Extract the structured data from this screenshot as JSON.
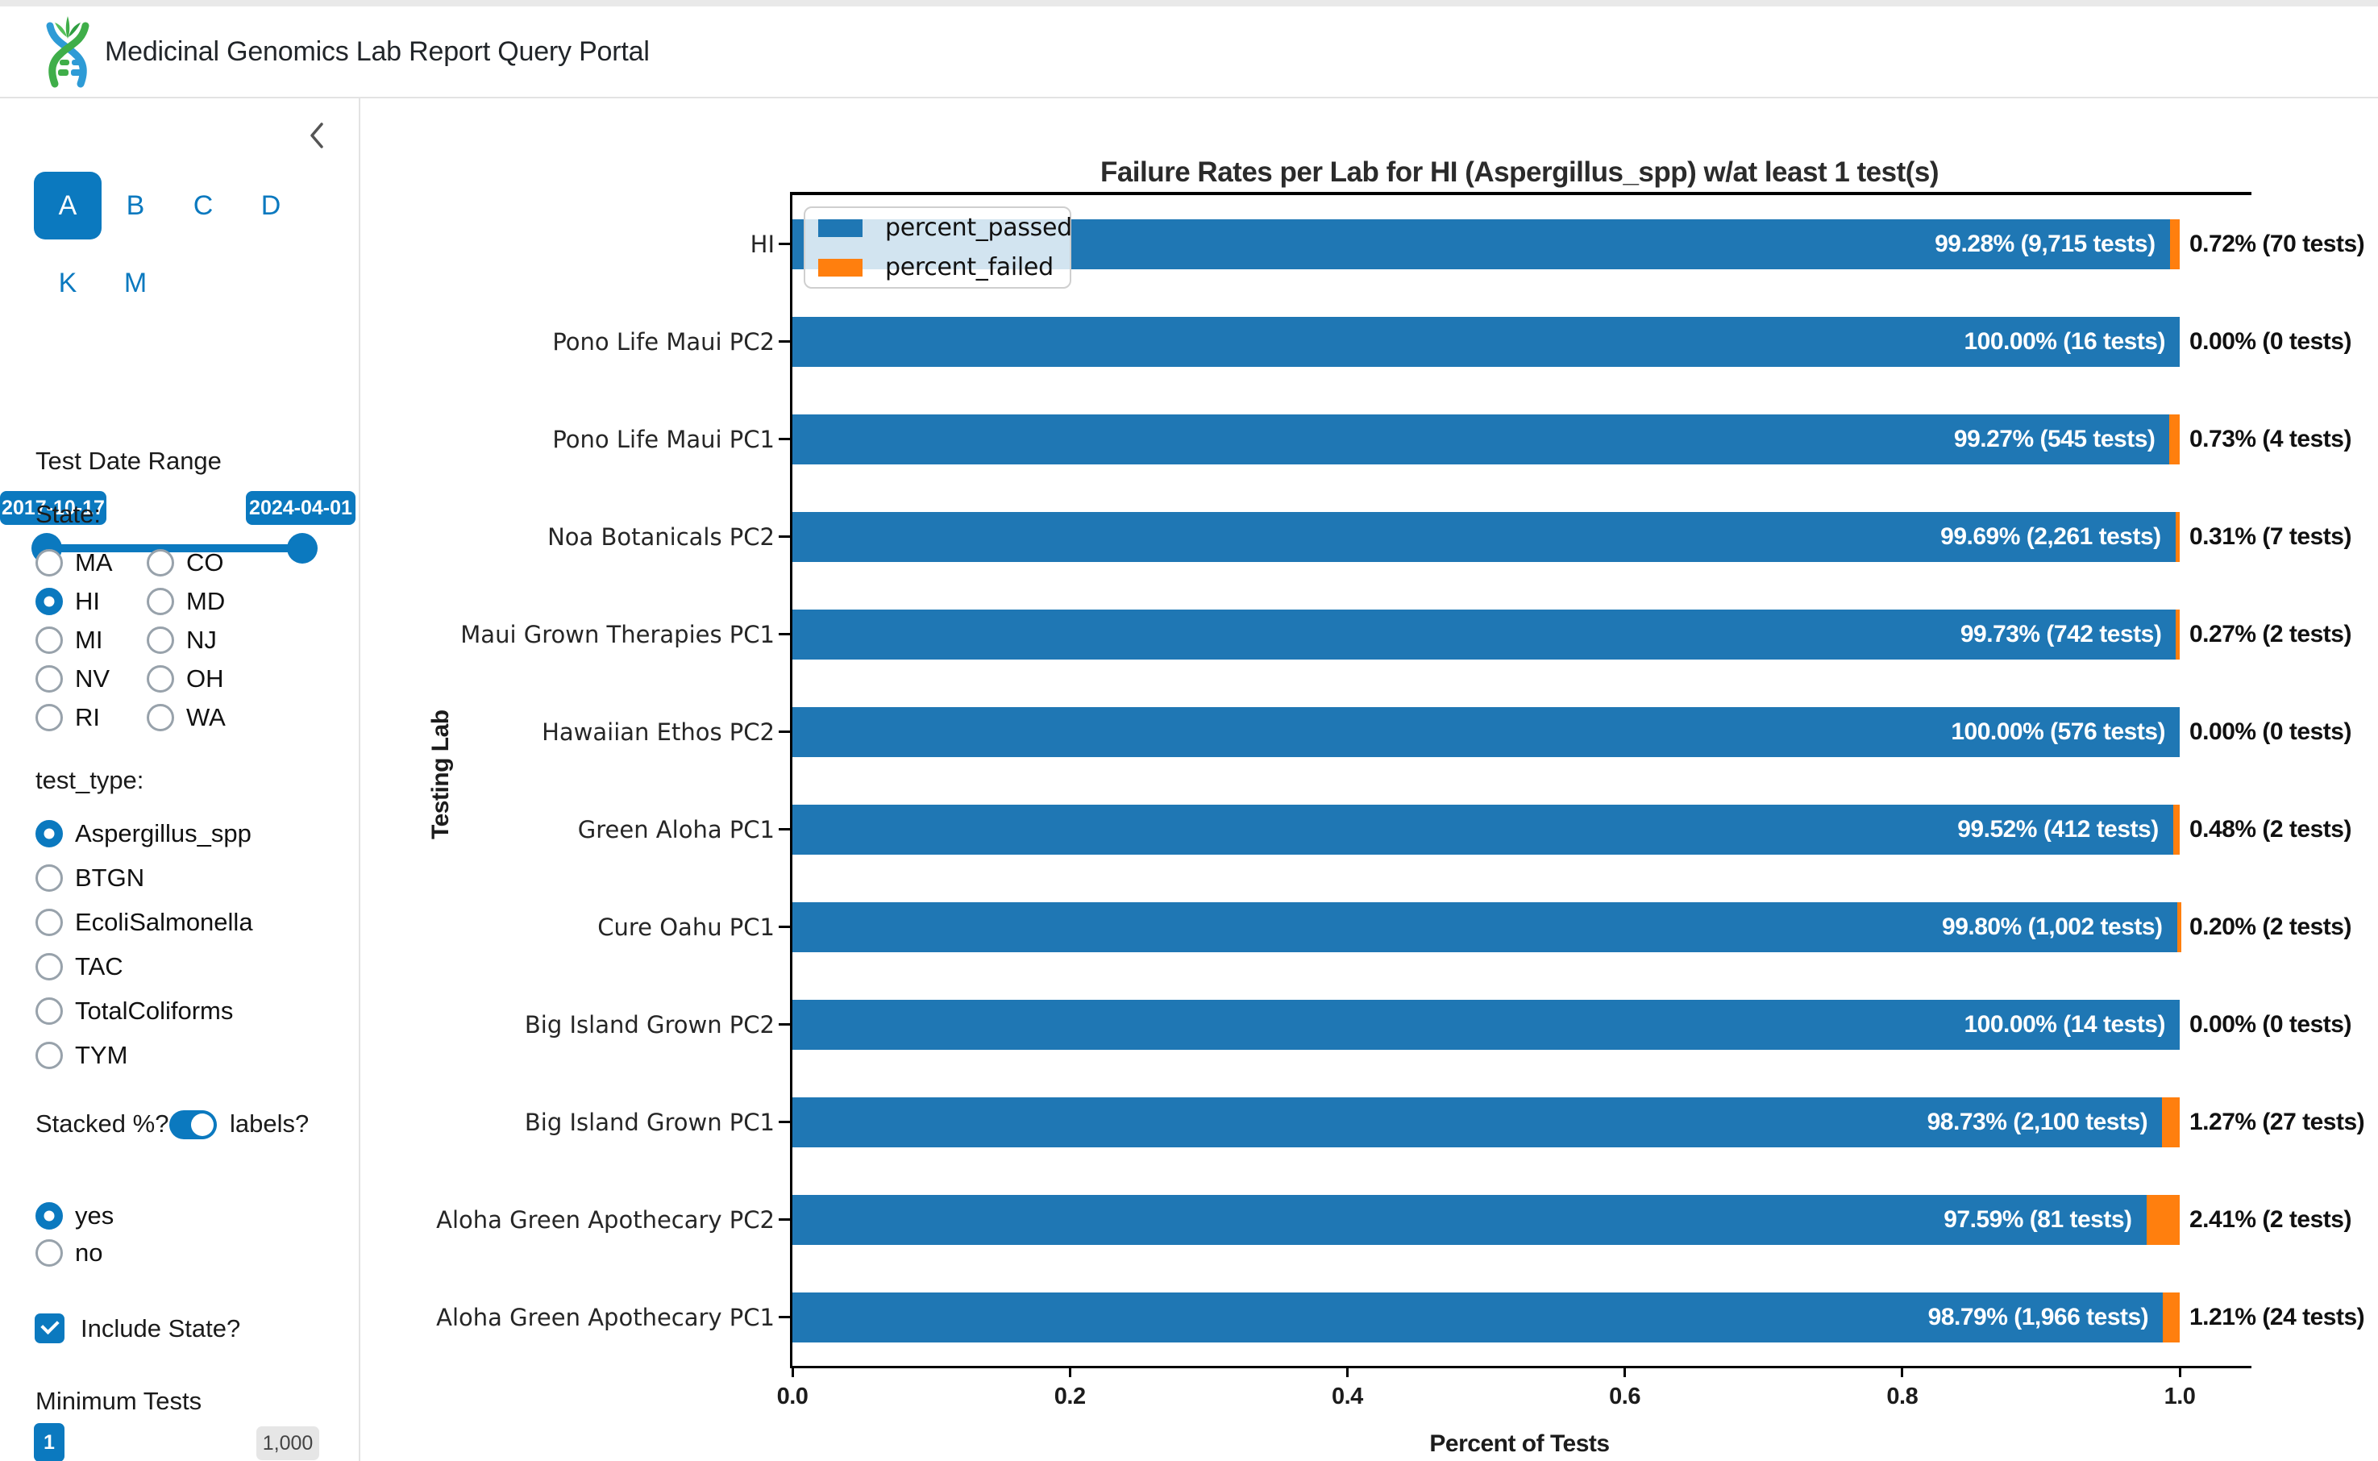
{
  "colors": {
    "accent": "#0b79bf",
    "bar_passed": "#1f77b4",
    "bar_failed": "#ff7f0e",
    "spine": "#000000",
    "border": "#e3e3e3"
  },
  "header": {
    "title": "Medicinal Genomics Lab Report Query Portal",
    "logo": "dna-leaf-logo"
  },
  "sidebar": {
    "collapse_icon": "chevron-left",
    "letter_tabs": {
      "row1": [
        "A",
        "B",
        "C",
        "D"
      ],
      "row2": [
        "K",
        "M"
      ],
      "selected": "A"
    },
    "date_range": {
      "label": "Test Date Range",
      "start": "2017-10-17",
      "end": "2024-04-01"
    },
    "state": {
      "label": "State:",
      "options": [
        "MA",
        "CO",
        "HI",
        "MD",
        "MI",
        "NJ",
        "NV",
        "OH",
        "RI",
        "WA"
      ],
      "selected": "HI"
    },
    "test_type": {
      "label": "test_type:",
      "options": [
        "Aspergillus_spp",
        "BTGN",
        "EcoliSalmonella",
        "TAC",
        "TotalColiforms",
        "TYM"
      ],
      "selected": "Aspergillus_spp"
    },
    "stacked": {
      "label": "Stacked %?",
      "toggle_label": "labels?",
      "toggle_on": true,
      "options": [
        "yes",
        "no"
      ],
      "selected": "yes"
    },
    "include_state": {
      "label": "Include State?",
      "checked": true
    },
    "minimum_tests": {
      "label": "Minimum Tests",
      "value": "1",
      "max": "1,000"
    }
  },
  "chart_data": {
    "type": "bar",
    "orientation": "horizontal",
    "stacked": true,
    "title": "Failure Rates per Lab for HI (Aspergillus_spp) w/at least 1 test(s)",
    "xlabel": "Percent of Tests",
    "ylabel": "Testing Lab",
    "xlim": [
      0,
      1.05
    ],
    "xticks": [
      0.0,
      0.2,
      0.4,
      0.6,
      0.8,
      1.0
    ],
    "xtick_labels": [
      "0.0",
      "0.2",
      "0.4",
      "0.6",
      "0.8",
      "1.0"
    ],
    "grid": false,
    "legend": {
      "position": "upper left",
      "entries": [
        {
          "label": "percent_passed",
          "color": "#1f77b4"
        },
        {
          "label": "percent_failed",
          "color": "#ff7f0e"
        }
      ]
    },
    "categories": [
      "HI",
      "Pono Life Maui PC2",
      "Pono Life Maui PC1",
      "Noa Botanicals PC2",
      "Maui Grown Therapies PC1",
      "Hawaiian Ethos PC2",
      "Green Aloha PC1",
      "Cure Oahu PC1",
      "Big Island Grown PC2",
      "Big Island Grown PC1",
      "Aloha Green Apothecary PC2",
      "Aloha Green Apothecary PC1"
    ],
    "series": [
      {
        "name": "percent_passed",
        "values": [
          0.9928,
          1.0,
          0.9927,
          0.9969,
          0.9973,
          1.0,
          0.9952,
          0.998,
          1.0,
          0.9873,
          0.9759,
          0.9879
        ],
        "tests": [
          9715,
          16,
          545,
          2261,
          742,
          576,
          412,
          1002,
          14,
          2100,
          81,
          1966
        ],
        "labels": [
          "99.28% (9,715 tests)",
          "100.00% (16 tests)",
          "99.27% (545 tests)",
          "99.69% (2,261 tests)",
          "99.73% (742 tests)",
          "100.00% (576 tests)",
          "99.52% (412 tests)",
          "99.80% (1,002 tests)",
          "100.00% (14 tests)",
          "98.73% (2,100 tests)",
          "97.59% (81 tests)",
          "98.79% (1,966 tests)"
        ]
      },
      {
        "name": "percent_failed",
        "values": [
          0.0072,
          0.0,
          0.0073,
          0.0031,
          0.0027,
          0.0,
          0.0048,
          0.002,
          0.0,
          0.0127,
          0.0241,
          0.0121
        ],
        "tests": [
          70,
          0,
          4,
          7,
          2,
          0,
          2,
          2,
          0,
          27,
          2,
          24
        ],
        "labels": [
          "0.72% (70 tests)",
          "0.00% (0 tests)",
          "0.73% (4 tests)",
          "0.31% (7 tests)",
          "0.27% (2 tests)",
          "0.00% (0 tests)",
          "0.48% (2 tests)",
          "0.20% (2 tests)",
          "0.00% (0 tests)",
          "1.27% (27 tests)",
          "2.41% (2 tests)",
          "1.21% (24 tests)"
        ]
      }
    ]
  }
}
